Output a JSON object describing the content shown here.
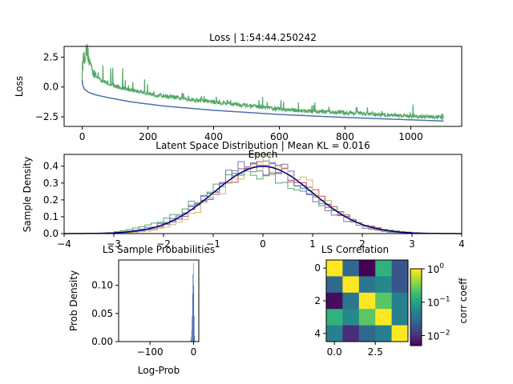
{
  "chart_data": [
    {
      "type": "line",
      "title": "Loss | 1:54:44.250242",
      "xlabel": "Epoch",
      "ylabel": "Loss",
      "xlim": [
        -55,
        1155
      ],
      "ylim": [
        -3.3,
        3.4
      ],
      "xticks": [
        0,
        200,
        400,
        600,
        800,
        1000
      ],
      "xtick_labels": [
        "0",
        "200",
        "400",
        "600",
        "800",
        "1000"
      ],
      "yticks": [
        2.5,
        0,
        -2.5
      ],
      "ytick_labels": [
        "2.5",
        "0.0",
        "−2.5"
      ],
      "series": [
        {
          "color": "#4c72b0",
          "x": [
            0,
            2,
            5,
            10,
            20,
            40,
            80,
            150,
            250,
            400,
            600,
            800,
            1000,
            1100
          ],
          "values": [
            0.6,
            0.1,
            -0.1,
            -0.25,
            -0.45,
            -0.65,
            -0.9,
            -1.25,
            -1.6,
            -1.95,
            -2.3,
            -2.55,
            -2.75,
            -2.85
          ]
        },
        {
          "color": "#55a868",
          "x": [
            0,
            3,
            8,
            15,
            25,
            50,
            100,
            200,
            300,
            400,
            500,
            600,
            700,
            800,
            900,
            1000,
            1100
          ],
          "values": [
            0.9,
            2.2,
            2.4,
            2.9,
            1.6,
            0.6,
            0.0,
            -0.6,
            -1.0,
            -1.3,
            -1.6,
            -1.9,
            -2.1,
            -2.2,
            -2.35,
            -2.5,
            -2.6
          ]
        }
      ]
    },
    {
      "type": "line",
      "title": "Latent Space Distribution | Mean KL = 0.016",
      "xlabel": "",
      "ylabel": "Sample Density",
      "xlim": [
        -4,
        4
      ],
      "ylim": [
        0,
        0.47
      ],
      "xticks": [
        -4,
        -3,
        -2,
        -1,
        0,
        1,
        2,
        3,
        4
      ],
      "xtick_labels": [
        "−4",
        "−3",
        "−2",
        "−1",
        "0",
        "1",
        "2",
        "3",
        "4"
      ],
      "yticks": [
        0,
        0.1,
        0.2,
        0.3,
        0.4
      ],
      "ytick_labels": [
        "0.0",
        "0.1",
        "0.2",
        "0.3",
        "0.4"
      ],
      "reference_curve": {
        "type": "standard-normal-pdf",
        "color": "#000080"
      },
      "histograms": [
        {
          "color": "#4c72b0",
          "shift": 0.0,
          "width": 1.05
        },
        {
          "color": "#55a868",
          "shift": -0.1,
          "width": 1.1
        },
        {
          "color": "#c44e52",
          "shift": 0.05,
          "width": 0.98
        },
        {
          "color": "#8172b2",
          "shift": -0.05,
          "width": 0.95
        },
        {
          "color": "#ccb974",
          "shift": 0.1,
          "width": 0.93
        }
      ]
    },
    {
      "type": "bar",
      "title": "LS Sample Probabilities",
      "xlabel": "Log-Prob",
      "ylabel": "Prob Density",
      "xlim": [
        -172,
        12
      ],
      "ylim": [
        0,
        0.145
      ],
      "xticks": [
        -100,
        0
      ],
      "xtick_labels": [
        "−100",
        "0"
      ],
      "yticks": [
        0,
        0.05,
        0.1
      ],
      "ytick_labels": [
        "0.00",
        "0.05",
        "0.10"
      ],
      "color": "#4c72b0",
      "bins_x": [
        -8,
        -6,
        -5,
        -4,
        -3,
        -2,
        -1,
        0,
        1,
        2,
        3
      ],
      "values": [
        0.003,
        0.008,
        0.02,
        0.045,
        0.085,
        0.12,
        0.14,
        0.1,
        0.045,
        0.01,
        0.002
      ]
    },
    {
      "type": "heatmap",
      "title": "LS Correlation",
      "colorbar_label": "corr coeff",
      "colorbar_scale": "log",
      "colorbar_range": [
        0.005,
        1
      ],
      "colorbar_ticks": [
        "10",
        "10",
        "10"
      ],
      "colorbar_tick_exponents": [
        "0",
        "−1",
        "−2"
      ],
      "xticks": [
        0,
        2.5
      ],
      "xtick_labels": [
        "0.0",
        "2.5"
      ],
      "yticks": [
        0,
        2,
        4
      ],
      "ytick_labels": [
        "0",
        "2",
        "4"
      ],
      "matrix": [
        [
          1.0,
          0.03,
          0.005,
          0.15,
          0.02
        ],
        [
          0.03,
          1.0,
          0.04,
          0.06,
          0.02
        ],
        [
          0.006,
          0.04,
          1.0,
          0.25,
          0.05
        ],
        [
          0.15,
          0.06,
          0.25,
          1.0,
          0.05
        ],
        [
          0.05,
          0.01,
          0.03,
          0.05,
          1.0
        ]
      ]
    }
  ]
}
